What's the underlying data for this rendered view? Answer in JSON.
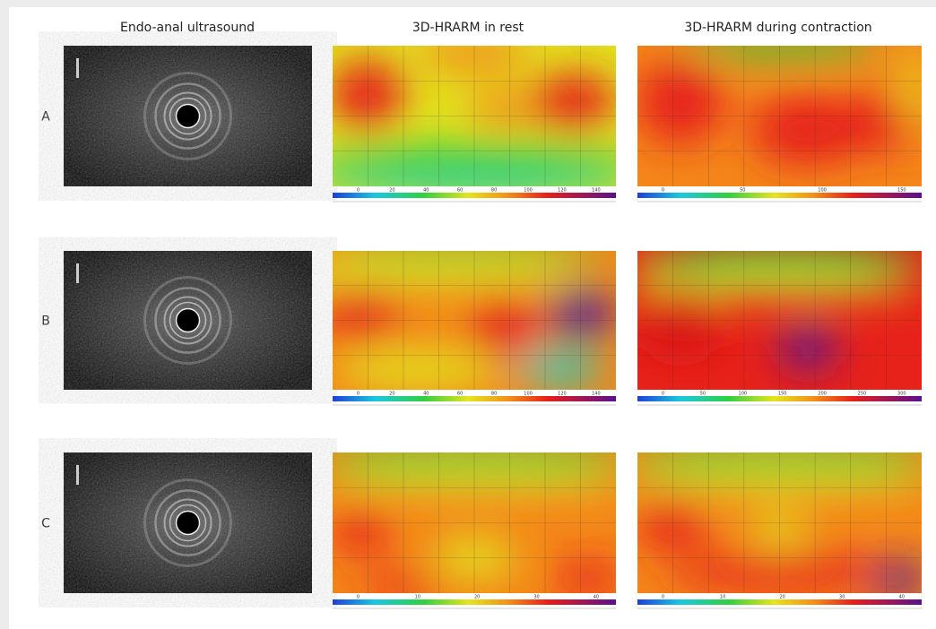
{
  "headers": [
    "Endo-anal ultrasound",
    "3D-HRARM in rest",
    "3D-HRARM during contraction"
  ],
  "rows": [
    {
      "label": "A",
      "rest_scale": [
        0,
        20,
        40,
        60,
        80,
        100,
        120,
        140
      ],
      "contraction_scale": [
        0,
        50,
        100,
        150
      ]
    },
    {
      "label": "B",
      "rest_scale": [
        0,
        20,
        40,
        60,
        80,
        100,
        120,
        140
      ],
      "contraction_scale": [
        0,
        50,
        100,
        150,
        200,
        250,
        300
      ]
    },
    {
      "label": "C",
      "rest_scale": [
        0,
        10,
        20,
        30,
        40
      ],
      "contraction_scale": [
        0,
        10,
        20,
        30,
        40
      ]
    }
  ]
}
